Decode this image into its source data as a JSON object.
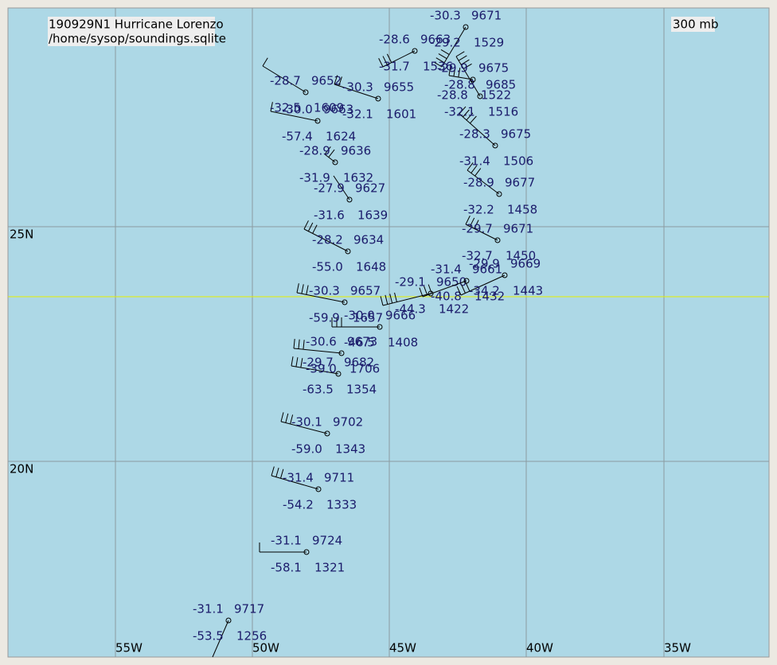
{
  "header": {
    "title": "190929N1 Hurricane Lorenzo",
    "source": "/home/sysop/soundings.sqlite",
    "level": "300 mb"
  },
  "latitudes": [
    "25N",
    "20N"
  ],
  "longitudes": [
    "55W",
    "50W",
    "45W",
    "40W",
    "35W"
  ],
  "stations": [
    {
      "temperature": "-31.1",
      "height": "9717",
      "dewpoint": "-53.5",
      "value": "1256"
    },
    {
      "temperature": "-31.1",
      "height": "9724",
      "dewpoint": "-58.1",
      "value": "1321"
    },
    {
      "temperature": "-31.4",
      "height": "9711",
      "dewpoint": "-54.2",
      "value": "1333"
    },
    {
      "temperature": "-30.1",
      "height": "9702",
      "dewpoint": "-59.0",
      "value": "1343"
    },
    {
      "temperature": "-29.7",
      "height": "9682",
      "dewpoint": "-63.5",
      "value": "1354"
    },
    {
      "temperature": "-30.6",
      "height": "9673",
      "dewpoint": "-39.0",
      "value": "1706"
    },
    {
      "temperature": "-30.0",
      "height": "9666",
      "dewpoint": "-46.5",
      "value": "1408"
    },
    {
      "temperature": "-30.3",
      "height": "9657",
      "dewpoint": "-59.9",
      "value": "1657"
    },
    {
      "temperature": "-29.1",
      "height": "9650",
      "dewpoint": "-44.3",
      "value": "1422"
    },
    {
      "temperature": "-31.4",
      "height": "9661",
      "dewpoint": "-40.8",
      "value": "1432"
    },
    {
      "temperature": "-29.9",
      "height": "9669",
      "dewpoint": "-34.2",
      "value": "1443"
    },
    {
      "temperature": "-29.7",
      "height": "9671",
      "dewpoint": "-32.7",
      "value": "1450"
    },
    {
      "temperature": "-28.9",
      "height": "9677",
      "dewpoint": "-32.2",
      "value": "1458"
    },
    {
      "temperature": "-28.3",
      "height": "9675",
      "dewpoint": "-31.4",
      "value": "1506"
    },
    {
      "temperature": "-28.8",
      "height": "9685",
      "dewpoint": "-32.1",
      "value": "1516"
    },
    {
      "temperature": "-29.9",
      "height": "9675",
      "dewpoint": "-28.8",
      "value": "1522"
    },
    {
      "temperature": "-30.3",
      "height": "9671",
      "dewpoint": "-29.2",
      "value": "1529"
    },
    {
      "temperature": "-28.6",
      "height": "9663",
      "dewpoint": "-31.7",
      "value": "1536"
    },
    {
      "temperature": "-28.2",
      "height": "9634",
      "dewpoint": "-55.0",
      "value": "1648"
    },
    {
      "temperature": "-27.9",
      "height": "9627",
      "dewpoint": "-31.6",
      "value": "1639"
    },
    {
      "temperature": "-28.9",
      "height": "9636",
      "dewpoint": "-31.9",
      "value": "1632"
    },
    {
      "temperature": "-30.0",
      "height": "9663",
      "dewpoint": "-57.4",
      "value": "1624"
    },
    {
      "temperature": "-28.7",
      "height": "9652",
      "dewpoint": "-32.5",
      "value": "1609"
    },
    {
      "temperature": "-30.3",
      "height": "9655",
      "dewpoint": "-32.1",
      "value": "1601"
    }
  ]
}
